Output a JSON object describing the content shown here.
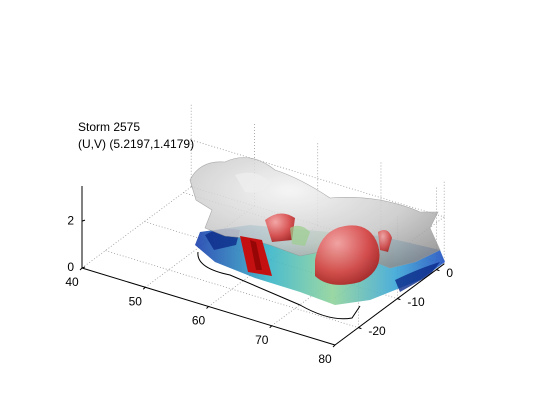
{
  "chart_data": {
    "type": "surface3d",
    "title": "Storm 2575",
    "subtitle": "(U,V) (5.2197,1.4179)",
    "xlim": [
      40,
      80
    ],
    "xticks": [
      40,
      50,
      60,
      70,
      80
    ],
    "ylim": [
      -26,
      2
    ],
    "yticks": [
      -20,
      -10,
      0
    ],
    "zlim": [
      0,
      3.5
    ],
    "zticks": [
      0,
      2
    ],
    "grid": true
  }
}
